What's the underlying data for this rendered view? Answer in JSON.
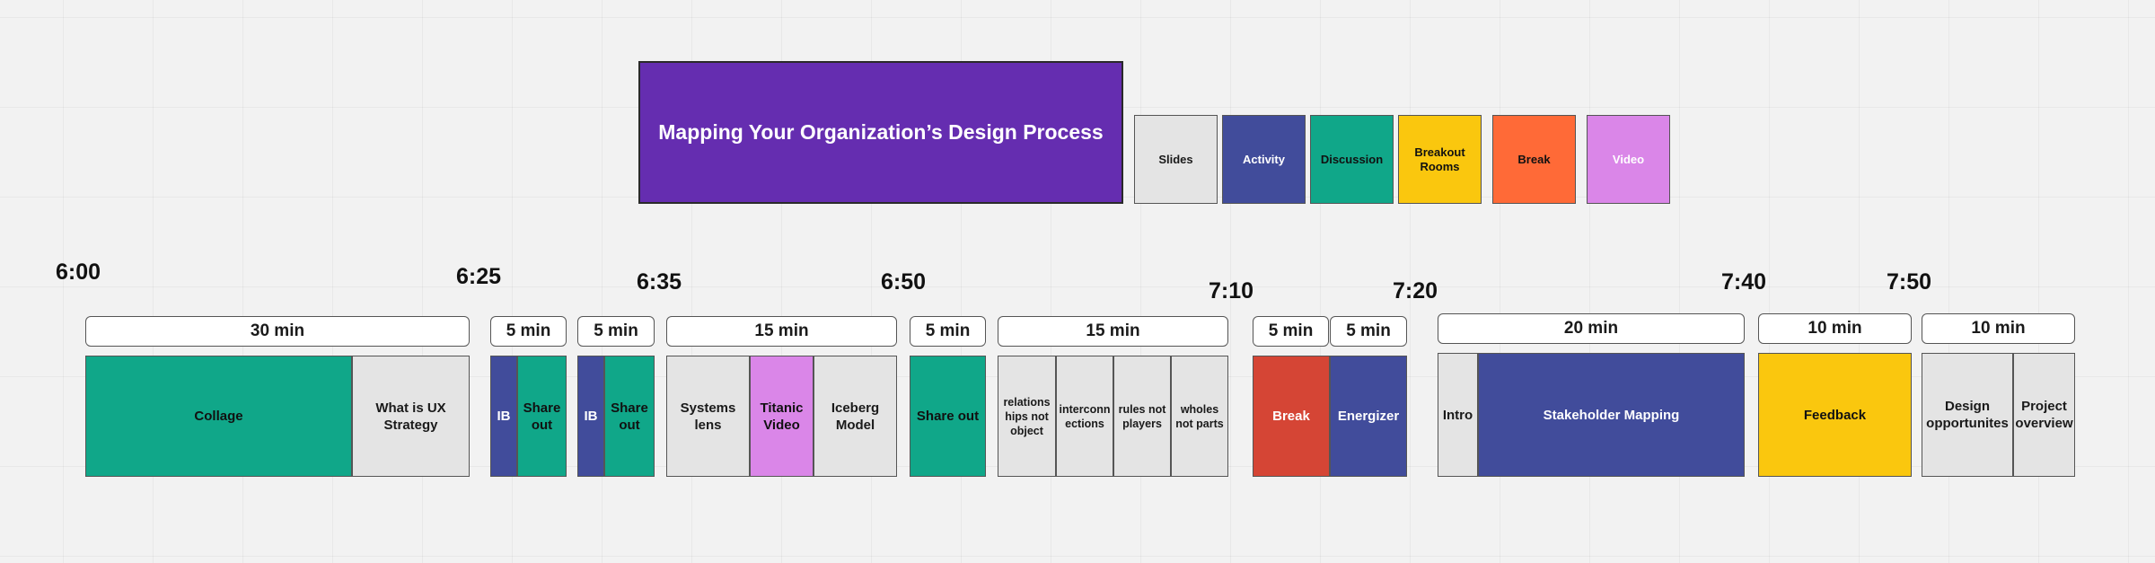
{
  "title": "Mapping Your Organization’s Design Process",
  "legend": [
    "Slides",
    "Activity",
    "Discussion",
    "Breakout Rooms",
    "Break",
    "Video"
  ],
  "times": [
    "6:00",
    "6:25",
    "6:35",
    "6:50",
    "7:10",
    "7:20",
    "7:40",
    "7:50"
  ],
  "durations": [
    "30 min",
    "5 min",
    "5 min",
    "15 min",
    "5 min",
    "15 min",
    "5 min",
    "5 min",
    "20 min",
    "10 min",
    "10 min"
  ],
  "blocks": [
    "Collage",
    "What is UX Strategy",
    "IB",
    "Share out",
    "IB",
    "Share out",
    "Systems lens",
    "Titanic Video",
    "Iceberg Model",
    "Share out",
    "relations hips not object",
    "interconn ections",
    "rules not players",
    "wholes not parts",
    "Break",
    "Energizer",
    "Intro",
    "Stakeholder Mapping",
    "Feedback",
    "Design opportunites",
    "Project overview"
  ],
  "colors": {
    "title_bg": "#652db0",
    "slides": "#e4e4e4",
    "activity": "#414c9b",
    "discussion": "#10a789",
    "breakout_rooms": "#fac70e",
    "break": "#ff6a37",
    "video": "#da86e8",
    "break_block": "#d54535"
  }
}
